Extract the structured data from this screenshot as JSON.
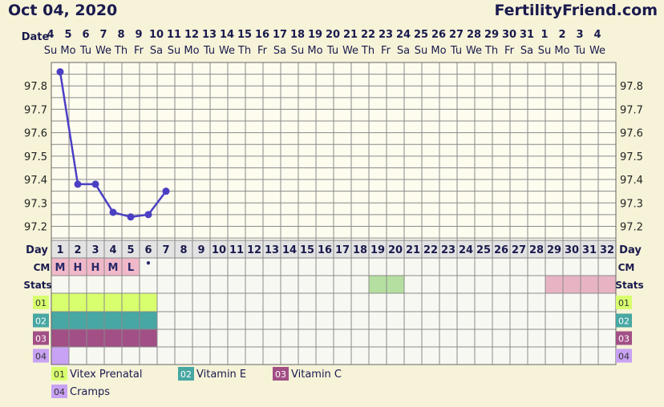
{
  "header": {
    "date": "Oct 04, 2020",
    "site": "FertilityFriend.com"
  },
  "labels": {
    "date_row": "Date",
    "day_row": "Day",
    "cm_row": "CM",
    "stats_row": "Stats",
    "track_codes": [
      "01",
      "02",
      "03",
      "04"
    ]
  },
  "dates": [
    "4",
    "5",
    "6",
    "7",
    "8",
    "9",
    "10",
    "11",
    "12",
    "13",
    "14",
    "15",
    "16",
    "17",
    "18",
    "19",
    "20",
    "21",
    "22",
    "23",
    "24",
    "25",
    "26",
    "27",
    "28",
    "29",
    "30",
    "31",
    "1",
    "2",
    "3",
    "4"
  ],
  "weekdays": [
    "Su",
    "Mo",
    "Tu",
    "We",
    "Th",
    "Fr",
    "Sa",
    "Su",
    "Mo",
    "Tu",
    "We",
    "Th",
    "Fr",
    "Sa",
    "Su",
    "Mo",
    "Tu",
    "We",
    "Th",
    "Fr",
    "Sa",
    "Su",
    "Mo",
    "Tu",
    "We",
    "Th",
    "Fr",
    "Sa",
    "Su",
    "Mo",
    "Tu",
    "We"
  ],
  "cycle_days": [
    "1",
    "2",
    "3",
    "4",
    "5",
    "6",
    "7",
    "8",
    "9",
    "10",
    "11",
    "12",
    "13",
    "14",
    "15",
    "16",
    "17",
    "18",
    "19",
    "20",
    "21",
    "22",
    "23",
    "24",
    "25",
    "26",
    "27",
    "28",
    "29",
    "30",
    "31",
    "32"
  ],
  "cm": [
    "M",
    "H",
    "H",
    "M",
    "L",
    "•"
  ],
  "stats_highlights": [
    {
      "from_day": 19,
      "to_day": 20,
      "color": "#b5dfa0"
    },
    {
      "from_day": 29,
      "to_day": 32,
      "color": "#e8b4c4"
    }
  ],
  "tracks": [
    {
      "code": "01",
      "name": "Vitex Prenatal",
      "color": "#d8ff6e",
      "days": [
        1,
        2,
        3,
        4,
        5,
        6
      ]
    },
    {
      "code": "02",
      "name": "Vitamin E",
      "color": "#47a7a3",
      "days": [
        1,
        2,
        3,
        4,
        5,
        6
      ]
    },
    {
      "code": "03",
      "name": "Vitamin C",
      "color": "#a24f86",
      "days": [
        1,
        2,
        3,
        4,
        5,
        6
      ]
    },
    {
      "code": "04",
      "name": "Cramps",
      "color": "#c8a2f5",
      "days": [
        1
      ]
    }
  ],
  "chart_data": {
    "type": "line",
    "title": "",
    "x": [
      1,
      2,
      3,
      4,
      5,
      6,
      7
    ],
    "series": [
      {
        "values": [
          97.86,
          97.38,
          97.38,
          97.26,
          97.24,
          97.25,
          97.35
        ]
      }
    ],
    "y_ticks": [
      "97.2",
      "97.3",
      "97.4",
      "97.5",
      "97.6",
      "97.7",
      "97.8"
    ],
    "ylim": [
      97.14,
      97.9
    ],
    "xlim": [
      1,
      32
    ],
    "grid": true,
    "line_color": "#4b3fc4"
  }
}
